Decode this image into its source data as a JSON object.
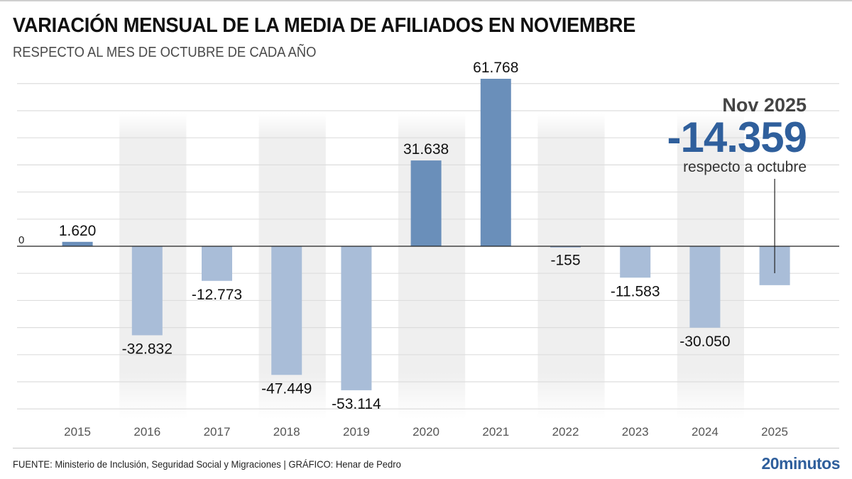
{
  "header": {
    "title": "VARIACIÓN MENSUAL DE LA MEDIA DE AFILIADOS EN NOVIEMBRE",
    "subtitle": "RESPECTO AL MES DE OCTUBRE DE CADA AÑO"
  },
  "callout": {
    "period": "Nov 2025",
    "value": "-14.359",
    "note": "respecto a octubre"
  },
  "footer": {
    "source": "FUENTE: Ministerio de Inclusión, Seguridad Social y Migraciones  |  GRÁFICO: Henar de Pedro",
    "logo": "20minutos"
  },
  "colors": {
    "positive": "#6a8fba",
    "negative": "#a9bdd8",
    "band": "#efefef",
    "grid": "#dddddd",
    "axis": "#222222",
    "accent": "#2f5f9c"
  },
  "chart_data": {
    "type": "bar",
    "title": "VARIACIÓN MENSUAL DE LA MEDIA DE AFILIADOS EN NOVIEMBRE",
    "subtitle": "RESPECTO AL MES DE OCTUBRE DE CADA AÑO",
    "xlabel": "",
    "ylabel": "",
    "categories": [
      "2015",
      "2016",
      "2017",
      "2018",
      "2019",
      "2020",
      "2021",
      "2022",
      "2023",
      "2024",
      "2025"
    ],
    "values": [
      1620,
      -32832,
      -12773,
      -47449,
      -53114,
      31638,
      61768,
      -155,
      -11583,
      -30050,
      -14359
    ],
    "data_labels": [
      "1.620",
      "-32.832",
      "-12.773",
      "-47.449",
      "-53.114",
      "31.638",
      "61.768",
      "-155",
      "-11.583",
      "-30.050",
      ""
    ],
    "zero_label": "0",
    "ylim": [
      -60000,
      60000
    ],
    "grid_step": 10000,
    "grid": true,
    "legend": "none",
    "alternating_bands": [
      "2016",
      "2018",
      "2020",
      "2022",
      "2024"
    ],
    "annotation": {
      "category": "2025",
      "text": "Nov 2025 -14.359 respecto a octubre",
      "placement": "top-right"
    }
  }
}
